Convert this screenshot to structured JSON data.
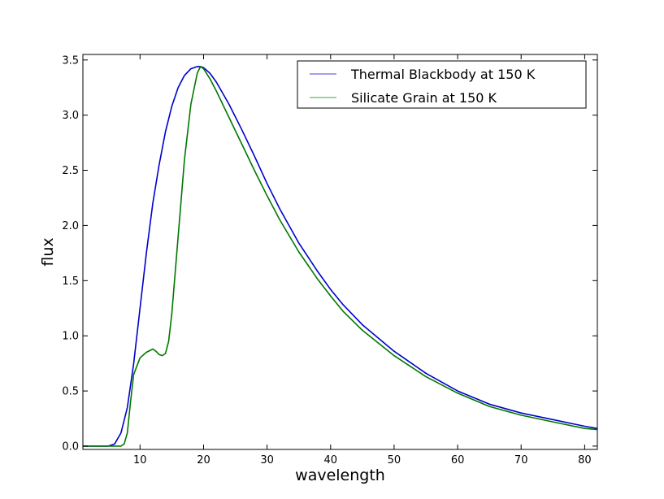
{
  "chart_data": {
    "type": "line",
    "title": "",
    "xlabel": "wavelength",
    "ylabel": "flux",
    "xlim": [
      1,
      82
    ],
    "ylim": [
      -0.03,
      3.55
    ],
    "xticks": [
      10,
      20,
      30,
      40,
      50,
      60,
      70,
      80
    ],
    "yticks": [
      0.0,
      0.5,
      1.0,
      1.5,
      2.0,
      2.5,
      3.0,
      3.5
    ],
    "xtick_labels": [
      "10",
      "20",
      "30",
      "40",
      "50",
      "60",
      "70",
      "80"
    ],
    "ytick_labels": [
      "0.0",
      "0.5",
      "1.0",
      "1.5",
      "2.0",
      "2.5",
      "3.0",
      "3.5"
    ],
    "grid": false,
    "legend_position": "top-right",
    "series": [
      {
        "name": "Thermal Blackbody at 150 K",
        "color": "#0000cc",
        "legend_color": "#8080e6",
        "x": [
          1,
          5,
          6,
          7,
          8,
          9,
          10,
          11,
          12,
          13,
          14,
          15,
          16,
          17,
          18,
          19,
          19.5,
          20,
          21,
          22,
          24,
          26,
          28,
          30,
          32,
          35,
          38,
          40,
          42,
          45,
          50,
          55,
          60,
          65,
          70,
          75,
          80,
          82
        ],
        "y": [
          0.0,
          0.0,
          0.02,
          0.12,
          0.35,
          0.75,
          1.25,
          1.75,
          2.2,
          2.55,
          2.85,
          3.08,
          3.25,
          3.36,
          3.42,
          3.44,
          3.44,
          3.43,
          3.38,
          3.3,
          3.1,
          2.87,
          2.63,
          2.38,
          2.15,
          1.84,
          1.58,
          1.42,
          1.28,
          1.1,
          0.86,
          0.66,
          0.5,
          0.38,
          0.3,
          0.24,
          0.18,
          0.16
        ]
      },
      {
        "name": "Silicate Grain at 150 K",
        "color": "#007700",
        "legend_color": "#80c080",
        "x": [
          1,
          6,
          7,
          7.5,
          8,
          8.5,
          9,
          10,
          11,
          12,
          12.5,
          13,
          13.5,
          14,
          14.5,
          15,
          16,
          17,
          18,
          19,
          19.5,
          20,
          21,
          22,
          24,
          26,
          28,
          30,
          32,
          35,
          38,
          40,
          42,
          45,
          50,
          55,
          60,
          65,
          70,
          75,
          80,
          82
        ],
        "y": [
          0.0,
          0.0,
          0.0,
          0.02,
          0.12,
          0.4,
          0.65,
          0.8,
          0.85,
          0.88,
          0.86,
          0.83,
          0.82,
          0.84,
          0.95,
          1.2,
          1.9,
          2.6,
          3.1,
          3.38,
          3.44,
          3.42,
          3.33,
          3.22,
          2.98,
          2.74,
          2.5,
          2.27,
          2.05,
          1.76,
          1.51,
          1.36,
          1.22,
          1.05,
          0.82,
          0.63,
          0.48,
          0.36,
          0.28,
          0.22,
          0.16,
          0.15
        ]
      }
    ]
  }
}
